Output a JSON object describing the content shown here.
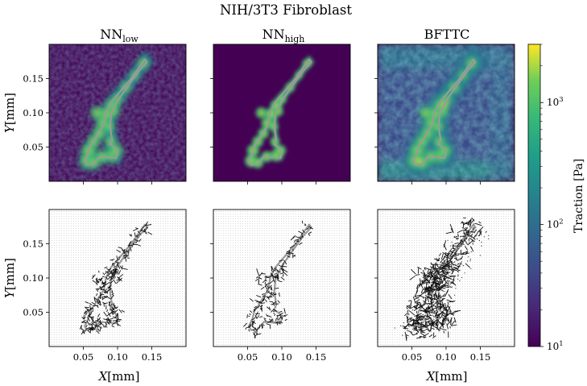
{
  "figure": {
    "title": "NIH/3T3 Fibroblast"
  },
  "chart_data": {
    "type": "heatmap",
    "columns": [
      {
        "title_base": "NN",
        "title_sub": "low"
      },
      {
        "title_base": "NN",
        "title_sub": "high"
      },
      {
        "title_base": "BFTTC",
        "title_sub": ""
      }
    ],
    "rows": [
      "traction-magnitude-map",
      "traction-vector-field"
    ],
    "xlabel_var": "X",
    "xlabel_unit": "[mm]",
    "ylabel_var": "Y",
    "ylabel_unit": "[mm]",
    "xticks": [
      {
        "value": 0.05,
        "label": "0.05"
      },
      {
        "value": 0.1,
        "label": "0.10"
      },
      {
        "value": 0.15,
        "label": "0.15"
      }
    ],
    "yticks": [
      {
        "value": 0.05,
        "label": "0.05"
      },
      {
        "value": 0.1,
        "label": "0.10"
      },
      {
        "value": 0.15,
        "label": "0.15"
      }
    ],
    "xlim": [
      0.0,
      0.2
    ],
    "ylim": [
      0.0,
      0.2
    ],
    "colorbar": {
      "label": "Traction [Pa]",
      "scale": "log",
      "range": [
        10,
        3000
      ],
      "ticks": [
        {
          "value": 10,
          "base": "10",
          "exp": "1"
        },
        {
          "value": 100,
          "base": "10",
          "exp": "2"
        },
        {
          "value": 1000,
          "base": "10",
          "exp": "3"
        }
      ],
      "colormap": "viridis"
    },
    "colors": {
      "low": "#440154",
      "mid": "#21918c",
      "high": "#fde725",
      "outline": "#9a9a9a",
      "arrows": "#111111",
      "grid_dots": "#c8c8c8"
    },
    "cell_outline": [
      [
        0.14,
        0.178
      ],
      [
        0.134,
        0.17
      ],
      [
        0.12,
        0.15
      ],
      [
        0.103,
        0.13
      ],
      [
        0.09,
        0.115
      ],
      [
        0.083,
        0.1
      ],
      [
        0.08,
        0.083
      ],
      [
        0.072,
        0.07
      ],
      [
        0.066,
        0.06
      ],
      [
        0.06,
        0.052
      ],
      [
        0.057,
        0.04
      ],
      [
        0.052,
        0.03
      ],
      [
        0.055,
        0.024
      ],
      [
        0.064,
        0.025
      ],
      [
        0.074,
        0.036
      ],
      [
        0.086,
        0.035
      ],
      [
        0.098,
        0.034
      ],
      [
        0.1,
        0.041
      ],
      [
        0.097,
        0.048
      ],
      [
        0.089,
        0.054
      ],
      [
        0.092,
        0.061
      ],
      [
        0.089,
        0.08
      ],
      [
        0.091,
        0.1
      ],
      [
        0.101,
        0.119
      ],
      [
        0.118,
        0.143
      ],
      [
        0.132,
        0.162
      ],
      [
        0.143,
        0.174
      ]
    ]
  }
}
